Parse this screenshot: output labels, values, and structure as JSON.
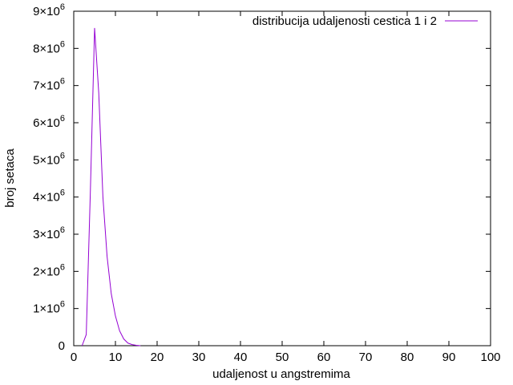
{
  "chart_data": {
    "type": "line",
    "xlabel": "udaljenost u angstremima",
    "ylabel": "broj setaca",
    "xlim": [
      0,
      100
    ],
    "ylim": [
      0,
      9000000
    ],
    "grid": false,
    "legend_position": "top-right",
    "x_ticks": [
      0,
      10,
      20,
      30,
      40,
      50,
      60,
      70,
      80,
      90,
      100
    ],
    "x_tick_labels": [
      "0",
      "10",
      "20",
      "30",
      "40",
      "50",
      "60",
      "70",
      "80",
      "90",
      "100"
    ],
    "y_ticks": [
      0,
      1000000,
      2000000,
      3000000,
      4000000,
      5000000,
      6000000,
      7000000,
      8000000,
      9000000
    ],
    "y_tick_labels": [
      {
        "base": "0",
        "exp": ""
      },
      {
        "base": "1×10",
        "exp": "6"
      },
      {
        "base": "2×10",
        "exp": "6"
      },
      {
        "base": "3×10",
        "exp": "6"
      },
      {
        "base": "4×10",
        "exp": "6"
      },
      {
        "base": "5×10",
        "exp": "6"
      },
      {
        "base": "6×10",
        "exp": "6"
      },
      {
        "base": "7×10",
        "exp": "6"
      },
      {
        "base": "8×10",
        "exp": "6"
      },
      {
        "base": "9×10",
        "exp": "6"
      }
    ],
    "series": [
      {
        "name": "distribucija udaljenosti cestica 1 i 2",
        "color": "#9400d3",
        "x": [
          2,
          3,
          4,
          5,
          6,
          7,
          8,
          9,
          10,
          11,
          12,
          13,
          14,
          15,
          16
        ],
        "y": [
          0,
          300000,
          4200000,
          8550000,
          6800000,
          4000000,
          2400000,
          1400000,
          800000,
          400000,
          180000,
          70000,
          30000,
          10000,
          0
        ]
      }
    ]
  }
}
